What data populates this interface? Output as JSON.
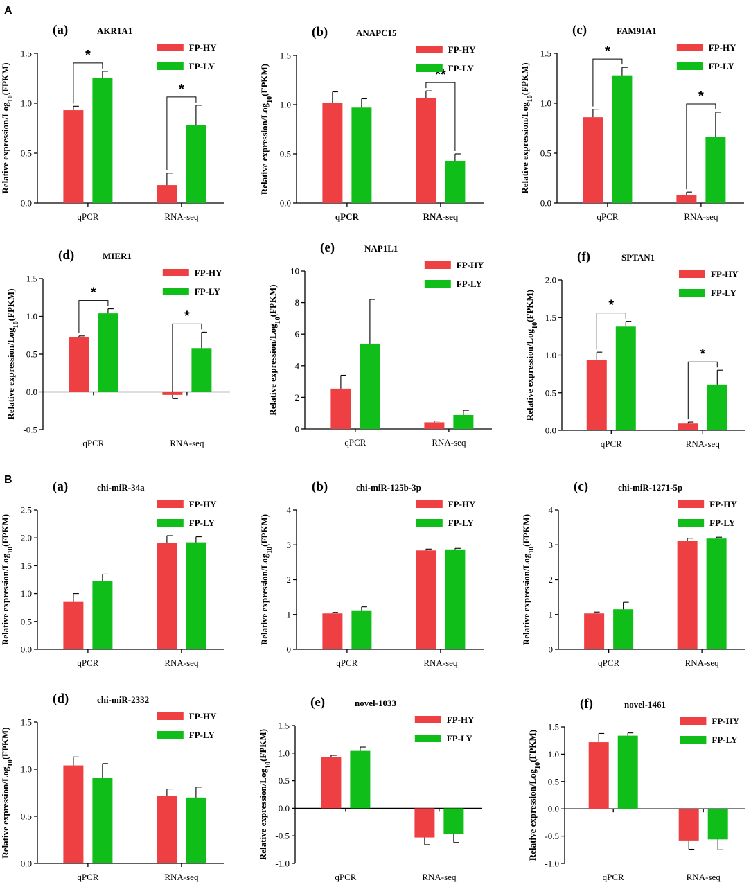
{
  "figure": {
    "section_a_label": "A",
    "section_b_label": "B"
  },
  "colors": {
    "FP-HY": "#ee4042",
    "FP-LY": "#0fbe18",
    "axis": "#000000"
  },
  "chart_data": [
    {
      "id": "A-a",
      "section": "A",
      "letter": "(a)",
      "type": "bar",
      "title": "AKR1A1",
      "categories": [
        "qPCR",
        "RNA-seq"
      ],
      "series": [
        {
          "name": "FP-HY",
          "values": [
            0.93,
            0.18
          ],
          "errors": [
            0.04,
            0.12
          ]
        },
        {
          "name": "FP-LY",
          "values": [
            1.25,
            0.78
          ],
          "errors": [
            0.07,
            0.2
          ]
        }
      ],
      "ylim": [
        0,
        1.5
      ],
      "yticks": [
        0,
        0.5,
        1.0,
        1.5
      ],
      "tick_format": 1,
      "ylabel": "Relative expression/Log10(FPKM)",
      "significance": [
        {
          "category": 0,
          "label": "*"
        },
        {
          "category": 1,
          "label": "*"
        }
      ],
      "legend": "top-right",
      "bold_categories": false
    },
    {
      "id": "A-b",
      "section": "A",
      "letter": "(b)",
      "type": "bar",
      "title": "ANAPC15",
      "categories": [
        "qPCR",
        "RNA-seq"
      ],
      "series": [
        {
          "name": "FP-HY",
          "values": [
            1.02,
            1.07
          ],
          "errors": [
            0.11,
            0.07
          ]
        },
        {
          "name": "FP-LY",
          "values": [
            0.97,
            0.43
          ],
          "errors": [
            0.09,
            0.07
          ]
        }
      ],
      "ylim": [
        0,
        1.5
      ],
      "yticks": [
        0,
        0.5,
        1.0,
        1.5
      ],
      "tick_format": 1,
      "ylabel": "Relative expression/Log10(FPKM)",
      "significance": [
        {
          "category": 1,
          "label": "**"
        }
      ],
      "legend": "top-right",
      "bold_categories": true
    },
    {
      "id": "A-c",
      "section": "A",
      "letter": "(c)",
      "type": "bar",
      "title": "FAM91A1",
      "categories": [
        "qPCR",
        "RNA-seq"
      ],
      "series": [
        {
          "name": "FP-HY",
          "values": [
            0.86,
            0.08
          ],
          "errors": [
            0.08,
            0.03
          ]
        },
        {
          "name": "FP-LY",
          "values": [
            1.28,
            0.66
          ],
          "errors": [
            0.08,
            0.25
          ]
        }
      ],
      "ylim": [
        0,
        1.5
      ],
      "yticks": [
        0,
        0.5,
        1.0,
        1.5
      ],
      "tick_format": 1,
      "ylabel": "Relative expression/Log10(FPKM)",
      "significance": [
        {
          "category": 0,
          "label": "*"
        },
        {
          "category": 1,
          "label": "*"
        }
      ],
      "legend": "top-right",
      "bold_categories": false
    },
    {
      "id": "A-d",
      "section": "A",
      "letter": "(d)",
      "type": "bar",
      "title": "MIER1",
      "categories": [
        "qPCR",
        "RNA-seq"
      ],
      "series": [
        {
          "name": "FP-HY",
          "values": [
            0.72,
            -0.04
          ],
          "errors": [
            0.02,
            0.05
          ]
        },
        {
          "name": "FP-LY",
          "values": [
            1.04,
            0.58
          ],
          "errors": [
            0.06,
            0.21
          ]
        }
      ],
      "ylim": [
        -0.5,
        1.5
      ],
      "yticks": [
        -0.5,
        0,
        0.5,
        1.0,
        1.5
      ],
      "tick_format": 1,
      "ylabel": "Relative expression/Log10(FPKM)",
      "significance": [
        {
          "category": 0,
          "label": "*"
        },
        {
          "category": 1,
          "label": "*"
        }
      ],
      "legend": "top-right",
      "bold_categories": false
    },
    {
      "id": "A-e",
      "section": "A",
      "letter": "(e)",
      "type": "bar",
      "title": "NAP1L1",
      "categories": [
        "qPCR",
        "RNA-seq"
      ],
      "series": [
        {
          "name": "FP-HY",
          "values": [
            2.55,
            0.42
          ],
          "errors": [
            0.85,
            0.08
          ]
        },
        {
          "name": "FP-LY",
          "values": [
            5.4,
            0.88
          ],
          "errors": [
            2.8,
            0.3
          ]
        }
      ],
      "ylim": [
        0,
        10
      ],
      "yticks": [
        0,
        2,
        4,
        6,
        8,
        10
      ],
      "tick_format": 0,
      "ylabel": "Relative expression/Log10(FPKM)",
      "significance": [],
      "legend": "top-right",
      "bold_categories": false
    },
    {
      "id": "A-f",
      "section": "A",
      "letter": "(f)",
      "type": "bar",
      "title": "SPTAN1",
      "categories": [
        "qPCR",
        "RNA-seq"
      ],
      "series": [
        {
          "name": "FP-HY",
          "values": [
            0.94,
            0.09
          ],
          "errors": [
            0.1,
            0.02
          ]
        },
        {
          "name": "FP-LY",
          "values": [
            1.38,
            0.61
          ],
          "errors": [
            0.07,
            0.19
          ]
        }
      ],
      "ylim": [
        0,
        2.0
      ],
      "yticks": [
        0,
        0.5,
        1.0,
        1.5,
        2.0
      ],
      "tick_format": 1,
      "ylabel": "Relative expression/Log10(FPKM)",
      "significance": [
        {
          "category": 0,
          "label": "*"
        },
        {
          "category": 1,
          "label": "*"
        }
      ],
      "legend": "top-right",
      "bold_categories": false
    },
    {
      "id": "B-a",
      "section": "B",
      "letter": "(a)",
      "type": "bar",
      "title": "chi-miR-34a",
      "categories": [
        "qPCR",
        "RNA-seq"
      ],
      "series": [
        {
          "name": "FP-HY",
          "values": [
            0.85,
            1.91
          ],
          "errors": [
            0.15,
            0.13
          ]
        },
        {
          "name": "FP-LY",
          "values": [
            1.22,
            1.92
          ],
          "errors": [
            0.13,
            0.1
          ]
        }
      ],
      "ylim": [
        0,
        2.5
      ],
      "yticks": [
        0,
        0.5,
        1.0,
        1.5,
        2.0,
        2.5
      ],
      "tick_format": 1,
      "ylabel": "Relative expression/Log10(FPKM)",
      "significance": [],
      "legend": "top-right",
      "bold_categories": false
    },
    {
      "id": "B-b",
      "section": "B",
      "letter": "(b)",
      "type": "bar",
      "title": "chi-miR-125b-3p",
      "categories": [
        "qPCR",
        "RNA-seq"
      ],
      "series": [
        {
          "name": "FP-HY",
          "values": [
            1.03,
            2.84
          ],
          "errors": [
            0.03,
            0.04
          ]
        },
        {
          "name": "FP-LY",
          "values": [
            1.12,
            2.87
          ],
          "errors": [
            0.1,
            0.03
          ]
        }
      ],
      "ylim": [
        0,
        4
      ],
      "yticks": [
        0,
        1,
        2,
        3,
        4
      ],
      "tick_format": 0,
      "ylabel": "Relative expression/Log10(FPKM)",
      "significance": [],
      "legend": "top-right",
      "bold_categories": false
    },
    {
      "id": "B-c",
      "section": "B",
      "letter": "(c)",
      "type": "bar",
      "title": "chi-miR-1271-5p",
      "categories": [
        "qPCR",
        "RNA-seq"
      ],
      "series": [
        {
          "name": "FP-HY",
          "values": [
            1.03,
            3.12
          ],
          "errors": [
            0.04,
            0.07
          ]
        },
        {
          "name": "FP-LY",
          "values": [
            1.15,
            3.18
          ],
          "errors": [
            0.2,
            0.04
          ]
        }
      ],
      "ylim": [
        0,
        4
      ],
      "yticks": [
        0,
        1,
        2,
        3,
        4
      ],
      "tick_format": 0,
      "ylabel": "Relative expression/Log10(FPKM)",
      "significance": [],
      "legend": "top-right",
      "bold_categories": false
    },
    {
      "id": "B-d",
      "section": "B",
      "letter": "(d)",
      "type": "bar",
      "title": "chi-miR-2332",
      "categories": [
        "qPCR",
        "RNA-seq"
      ],
      "series": [
        {
          "name": "FP-HY",
          "values": [
            1.04,
            0.72
          ],
          "errors": [
            0.09,
            0.07
          ]
        },
        {
          "name": "FP-LY",
          "values": [
            0.91,
            0.7
          ],
          "errors": [
            0.15,
            0.11
          ]
        }
      ],
      "ylim": [
        0,
        1.5
      ],
      "yticks": [
        0,
        0.5,
        1.0,
        1.5
      ],
      "tick_format": 1,
      "ylabel": "Relative expression/Log10(FPKM)",
      "significance": [],
      "legend": "top-right",
      "bold_categories": false
    },
    {
      "id": "B-e",
      "section": "B",
      "letter": "(e)",
      "type": "bar",
      "title": "novel-1033",
      "categories": [
        "qPCR",
        "RNA-seq"
      ],
      "series": [
        {
          "name": "FP-HY",
          "values": [
            0.93,
            -0.53
          ],
          "errors": [
            0.03,
            0.13
          ]
        },
        {
          "name": "FP-LY",
          "values": [
            1.04,
            -0.47
          ],
          "errors": [
            0.07,
            0.15
          ]
        }
      ],
      "ylim": [
        -1.0,
        1.5
      ],
      "yticks": [
        -1.0,
        -0.5,
        0,
        0.5,
        1.0,
        1.5
      ],
      "tick_format": 1,
      "ylabel": "Relative expression/Log10(FPKM)",
      "significance": [],
      "legend": "top-right",
      "bold_categories": false
    },
    {
      "id": "B-f",
      "section": "B",
      "letter": "(f)",
      "type": "bar",
      "title": "novel-1461",
      "categories": [
        "qPCR",
        "RNA-seq"
      ],
      "series": [
        {
          "name": "FP-HY",
          "values": [
            1.22,
            -0.58
          ],
          "errors": [
            0.16,
            0.16
          ]
        },
        {
          "name": "FP-LY",
          "values": [
            1.34,
            -0.56
          ],
          "errors": [
            0.05,
            0.19
          ]
        }
      ],
      "ylim": [
        -1.0,
        1.5
      ],
      "yticks": [
        -1.0,
        -0.5,
        0,
        0.5,
        1.0,
        1.5
      ],
      "tick_format": 1,
      "ylabel": "Relative expression/Log10(FPKM)",
      "significance": [],
      "legend": "top-right",
      "bold_categories": false
    }
  ]
}
